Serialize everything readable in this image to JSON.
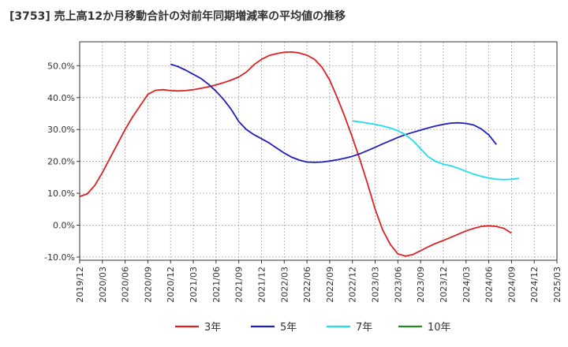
{
  "chart_data": {
    "type": "line",
    "title": "[3753]  売上高12か月移動合計の対前年同期増減率の平均値の推移",
    "xlabel": "",
    "ylabel": "",
    "ylim": [
      -11.0,
      57.5
    ],
    "yticks": [
      -10,
      0,
      10,
      20,
      30,
      40,
      50
    ],
    "ytick_labels": [
      "-10.0%",
      "0.0%",
      "10.0%",
      "20.0%",
      "30.0%",
      "40.0%",
      "50.0%"
    ],
    "x_start": "2019/12",
    "x_end": "2025/03",
    "xtick_labels": [
      "2019/12",
      "2020/03",
      "2020/06",
      "2020/09",
      "2020/12",
      "2021/03",
      "2021/06",
      "2021/09",
      "2021/12",
      "2022/03",
      "2022/06",
      "2022/09",
      "2022/12",
      "2023/03",
      "2023/06",
      "2023/09",
      "2023/12",
      "2024/03",
      "2024/06",
      "2024/09",
      "2024/12",
      "2025/03"
    ],
    "grid": true,
    "legend_position": "bottom",
    "series": [
      {
        "name": "3年",
        "color": "#dd2222",
        "start": "2019/12",
        "values": [
          9.0,
          9.8,
          12.5,
          16.5,
          21.0,
          25.5,
          30.0,
          34.0,
          37.5,
          41.0,
          42.3,
          42.5,
          42.2,
          42.1,
          42.2,
          42.5,
          42.9,
          43.4,
          44.0,
          44.7,
          45.5,
          46.5,
          48.0,
          50.3,
          52.0,
          53.2,
          53.8,
          54.2,
          54.3,
          54.0,
          53.3,
          52.0,
          49.5,
          45.5,
          40.0,
          34.0,
          27.5,
          20.5,
          13.0,
          5.0,
          -1.5,
          -6.0,
          -9.0,
          -9.7,
          -9.2,
          -8.0,
          -6.8,
          -5.7,
          -4.8,
          -3.8,
          -2.8,
          -1.8,
          -1.0,
          -0.4,
          -0.2,
          -0.4,
          -1.0,
          -2.5
        ]
      },
      {
        "name": "5年",
        "color": "#1f1fbf",
        "start": "2020/12",
        "values": [
          50.5,
          49.7,
          48.6,
          47.3,
          46.0,
          44.2,
          42.0,
          39.4,
          36.3,
          32.5,
          30.0,
          28.4,
          27.1,
          25.8,
          24.2,
          22.6,
          21.3,
          20.4,
          19.8,
          19.7,
          19.8,
          20.1,
          20.5,
          21.0,
          21.6,
          22.4,
          23.4,
          24.4,
          25.5,
          26.5,
          27.5,
          28.4,
          29.1,
          29.8,
          30.5,
          31.1,
          31.6,
          32.0,
          32.1,
          31.9,
          31.4,
          30.2,
          28.3,
          25.3
        ]
      },
      {
        "name": "7年",
        "color": "#22ddee",
        "start": "2022/12",
        "values": [
          32.7,
          32.4,
          32.0,
          31.6,
          31.1,
          30.5,
          29.6,
          28.4,
          26.5,
          24.0,
          21.5,
          20.0,
          19.1,
          18.6,
          17.8,
          16.9,
          16.0,
          15.3,
          14.8,
          14.4,
          14.3,
          14.4,
          14.7
        ]
      },
      {
        "name": "10年",
        "color": "#228822",
        "start": "2025/03",
        "values": []
      }
    ]
  }
}
